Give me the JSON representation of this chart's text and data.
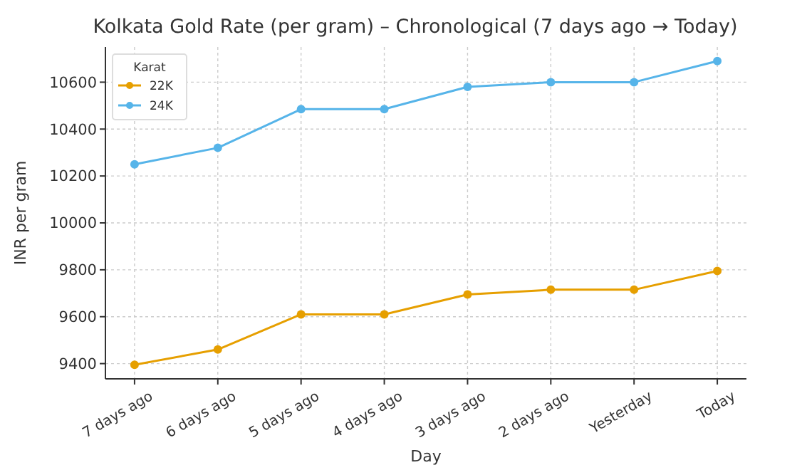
{
  "chart_data": {
    "type": "line",
    "title": "Kolkata Gold Rate (per gram) – Chronological (7 days ago → Today)",
    "xlabel": "Day",
    "ylabel": "INR per gram",
    "legend_title": "Karat",
    "categories": [
      "7 days ago",
      "6 days ago",
      "5 days ago",
      "4 days ago",
      "3 days ago",
      "2 days ago",
      "Yesterday",
      "Today"
    ],
    "series": [
      {
        "name": "22K",
        "color": "#e69f00",
        "values": [
          9395,
          9460,
          9610,
          9610,
          9695,
          9715,
          9715,
          9795
        ]
      },
      {
        "name": "24K",
        "color": "#56b4e9",
        "values": [
          10250,
          10320,
          10485,
          10485,
          10580,
          10600,
          10600,
          10690
        ]
      }
    ],
    "ylim": [
      9335,
      10750
    ],
    "yticks": [
      9400,
      9600,
      9800,
      10000,
      10200,
      10400,
      10600
    ],
    "grid": true,
    "legend": "top left",
    "marker": "circle",
    "line_style": "solid"
  }
}
